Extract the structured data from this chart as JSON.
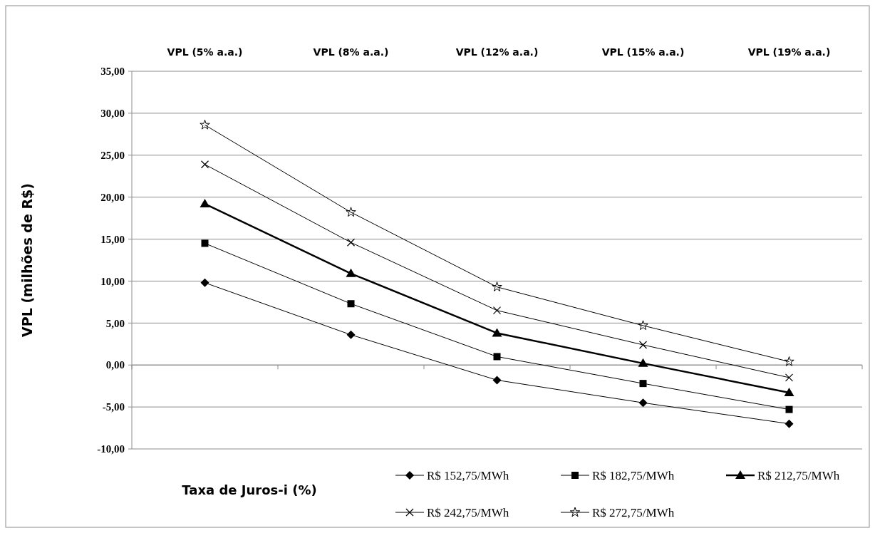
{
  "chart_data": {
    "type": "line",
    "xlabel": "Taxa de Juros-i (%)",
    "ylabel": "VPL  (milhões de R$)",
    "categories": [
      "VPL (5% a.a.)",
      "VPL (8% a.a.)",
      "VPL (12% a.a.)",
      "VPL (15% a.a.)",
      "VPL (19% a.a.)"
    ],
    "ylim": [
      -10,
      35
    ],
    "yticks": [
      {
        "value": -10,
        "label": "-10,00"
      },
      {
        "value": -5,
        "label": "-5,00"
      },
      {
        "value": 0,
        "label": "0,00"
      },
      {
        "value": 5,
        "label": "5,00"
      },
      {
        "value": 10,
        "label": "10,00"
      },
      {
        "value": 15,
        "label": "15,00"
      },
      {
        "value": 20,
        "label": "20,00"
      },
      {
        "value": 25,
        "label": "25,00"
      },
      {
        "value": 30,
        "label": "30,00"
      },
      {
        "value": 35,
        "label": "35,00"
      }
    ],
    "grid": "y",
    "legend": "bottom right",
    "series": [
      {
        "name": "R$ 152,75/MWh",
        "color": "#000000",
        "marker": "diamond",
        "values": [
          9.8,
          3.6,
          -1.8,
          -4.5,
          -7.0
        ]
      },
      {
        "name": "R$ 182,75/MWh",
        "color": "#000000",
        "marker": "square",
        "values": [
          14.5,
          7.3,
          1.0,
          -2.2,
          -5.3
        ]
      },
      {
        "name": "R$ 212,75/MWh",
        "color": "#000000",
        "marker": "triangle",
        "values": [
          19.2,
          10.9,
          3.8,
          0.2,
          -3.3
        ]
      },
      {
        "name": "R$ 242,75/MWh",
        "color": "#000000",
        "marker": "cross",
        "values": [
          23.9,
          14.6,
          6.5,
          2.4,
          -1.5
        ]
      },
      {
        "name": "R$ 272,75/MWh",
        "color": "#000000",
        "marker": "star",
        "values": [
          28.6,
          18.2,
          9.3,
          4.7,
          0.4
        ]
      }
    ]
  }
}
